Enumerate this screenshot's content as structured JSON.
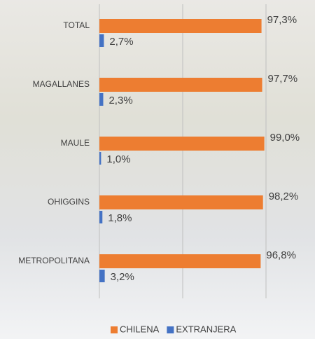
{
  "chart_data": {
    "type": "bar",
    "orientation": "horizontal",
    "categories": [
      "TOTAL",
      "MAGALLANES",
      "MAULE",
      "OHIGGINS",
      "METROPOLITANA"
    ],
    "series": [
      {
        "name": "CHILENA",
        "color": "#ed7d31",
        "values": [
          97.3,
          97.7,
          99.0,
          98.2,
          96.8
        ],
        "value_labels": [
          "97,3%",
          "97,7%",
          "99,0%",
          "98,2%",
          "96,8%"
        ]
      },
      {
        "name": "EXTRANJERA",
        "color": "#4472c4",
        "values": [
          2.7,
          2.3,
          1.0,
          1.8,
          3.2
        ],
        "value_labels": [
          "2,7%",
          "2,3%",
          "1,0%",
          "1,8%",
          "3,2%"
        ]
      }
    ],
    "xlim": [
      0,
      100
    ],
    "xticks": [
      0,
      50,
      100
    ],
    "grid": true,
    "legend": "bottom"
  }
}
